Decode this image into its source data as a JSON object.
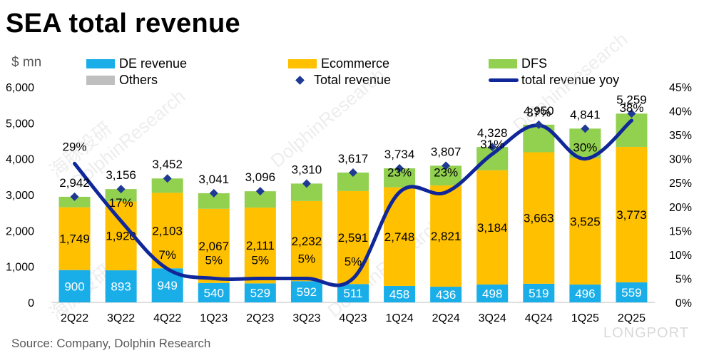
{
  "title": "SEA total revenue",
  "unit_label": "$ mn",
  "source": "Source: Company, Dolphin Research",
  "watermarks": [
    "海豚投研",
    "DolphinResearch",
    "LONGPORT"
  ],
  "colors": {
    "de_revenue": "#1aaee8",
    "ecommerce": "#ffc000",
    "dfs": "#92d050",
    "others": "#bfbfbf",
    "total_revenue": "#1f3a93",
    "total_revenue_yoy": "#10279a"
  },
  "chart_data": {
    "type": "bar",
    "stacked": true,
    "categories": [
      "2Q22",
      "3Q22",
      "4Q22",
      "1Q23",
      "2Q23",
      "3Q23",
      "4Q23",
      "1Q24",
      "2Q24",
      "3Q24",
      "4Q24",
      "1Q25",
      "2Q25"
    ],
    "series": [
      {
        "name": "DE revenue",
        "values": [
          900,
          893,
          949,
          540,
          529,
          592,
          511,
          458,
          436,
          498,
          519,
          496,
          559
        ]
      },
      {
        "name": "Ecommerce",
        "values": [
          1749,
          1920,
          2103,
          2067,
          2111,
          2232,
          2591,
          2748,
          2821,
          3184,
          3663,
          3525,
          3773
        ]
      },
      {
        "name": "DFS",
        "values": [
          293,
          343,
          400,
          434,
          456,
          486,
          515,
          528,
          550,
          646,
          768,
          820,
          927
        ]
      },
      {
        "name": "Others",
        "values": [
          0,
          0,
          0,
          0,
          0,
          0,
          0,
          0,
          0,
          0,
          0,
          0,
          0
        ]
      }
    ],
    "markers": {
      "name": "Total revenue",
      "type": "scatter",
      "values": [
        2942,
        3156,
        3452,
        3041,
        3096,
        3310,
        3617,
        3734,
        3807,
        4328,
        4950,
        4841,
        5259
      ]
    },
    "line": {
      "name": "total revenue yoy",
      "axis": "right",
      "values": [
        29,
        17,
        7,
        5,
        5,
        5,
        5,
        23,
        23,
        31,
        37,
        30,
        38
      ]
    },
    "yoy_labels": [
      {
        "index": 0,
        "text": "29%"
      },
      {
        "index": 1,
        "text": "17%"
      },
      {
        "index": 2,
        "text": "7%"
      },
      {
        "index": 3,
        "text": "5%"
      },
      {
        "index": 4,
        "text": "5%"
      },
      {
        "index": 5,
        "text": "5%"
      },
      {
        "index": 6,
        "text": "5%"
      },
      {
        "index": 7,
        "text": "23%"
      },
      {
        "index": 8,
        "text": "23%"
      },
      {
        "index": 9,
        "text": "31%"
      },
      {
        "index": 10,
        "text": "37%"
      },
      {
        "index": 11,
        "text": "30%"
      },
      {
        "index": 12,
        "text": "38%"
      }
    ],
    "ylim_left": [
      0,
      6000
    ],
    "yticks_left": [
      0,
      1000,
      2000,
      3000,
      4000,
      5000,
      6000
    ],
    "ytick_labels_left": [
      "0",
      "1,000",
      "2,000",
      "3,000",
      "4,000",
      "5,000",
      "6,000"
    ],
    "ylim_right": [
      0,
      45
    ],
    "yticks_right": [
      0,
      5,
      10,
      15,
      20,
      25,
      30,
      35,
      40,
      45
    ],
    "ytick_labels_right": [
      "0%",
      "5%",
      "10%",
      "15%",
      "20%",
      "25%",
      "30%",
      "35%",
      "40%",
      "45%"
    ],
    "legend": {
      "entries": [
        "DE revenue",
        "Ecommerce",
        "DFS",
        "Others",
        "Total revenue",
        "total revenue yoy"
      ],
      "placement": "top"
    },
    "grid": false
  }
}
